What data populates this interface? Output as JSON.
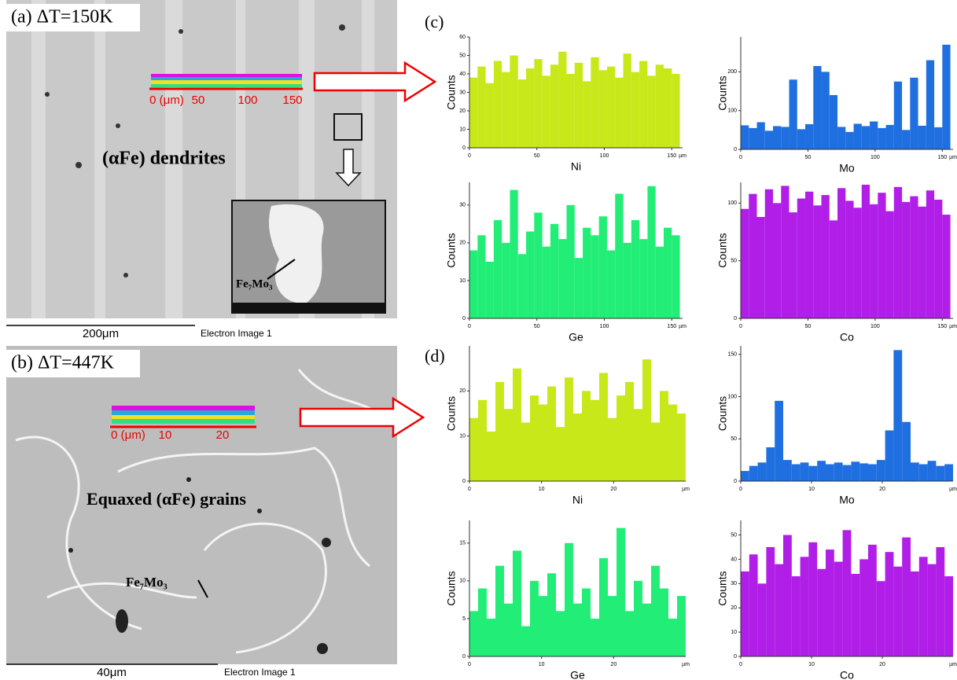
{
  "panels": {
    "a": {
      "label": "(a) ΔT=150K",
      "annotation": "(αFe) dendrites",
      "inset_label": "Fe₇Mo₃",
      "scale_bar": "200μm",
      "image_caption": "Electron Image 1",
      "line_scan_ticks": [
        "0 (μm)",
        "50",
        "100",
        "150"
      ]
    },
    "b": {
      "label": "(b) ΔT=447K",
      "annotation": "Equaxed (αFe) grains",
      "phase_label": "Fe₇Mo₃",
      "scale_bar": "40μm",
      "image_caption": "Electron Image 1",
      "line_scan_ticks": [
        "0 (μm)",
        "10",
        "20"
      ]
    },
    "c": {
      "label": "(c)"
    },
    "d": {
      "label": "(d)"
    }
  },
  "chart_data": [
    {
      "type": "bar",
      "y_label": "Counts",
      "x_label": "Ni",
      "x_unit": "µm",
      "color": "#c8e81a",
      "x": [
        0,
        6,
        12,
        18,
        24,
        30,
        36,
        42,
        48,
        54,
        60,
        66,
        72,
        78,
        84,
        90,
        96,
        102,
        108,
        114,
        120,
        126,
        132,
        138,
        144,
        150
      ],
      "values": [
        38,
        44,
        35,
        47,
        41,
        50,
        37,
        43,
        48,
        39,
        45,
        52,
        40,
        46,
        36,
        49,
        42,
        44,
        38,
        51,
        41,
        47,
        39,
        45,
        43,
        40
      ],
      "xlim": [
        0,
        158
      ],
      "ylim": [
        0,
        60
      ],
      "xticks": [
        0,
        50,
        100,
        150
      ],
      "yticks": [
        0,
        10,
        20,
        30,
        40,
        50,
        60
      ]
    },
    {
      "type": "bar",
      "y_label": "Counts",
      "x_label": "Mo",
      "x_unit": "µm",
      "color": "#1f6fe0",
      "x": [
        0,
        6,
        12,
        18,
        24,
        30,
        36,
        42,
        48,
        54,
        60,
        66,
        72,
        78,
        84,
        90,
        96,
        102,
        108,
        114,
        120,
        126,
        132,
        138,
        144,
        150
      ],
      "values": [
        62,
        55,
        70,
        48,
        60,
        58,
        180,
        52,
        65,
        215,
        200,
        140,
        58,
        45,
        66,
        60,
        72,
        55,
        63,
        175,
        50,
        185,
        61,
        230,
        57,
        270
      ],
      "xlim": [
        0,
        158
      ],
      "ylim": [
        0,
        290
      ],
      "xticks": [
        0,
        50,
        100,
        150
      ],
      "yticks": [
        0,
        100,
        200
      ]
    },
    {
      "type": "bar",
      "y_label": "Counts",
      "x_label": "Ge",
      "x_unit": "µm",
      "color": "#22ee77",
      "x": [
        0,
        6,
        12,
        18,
        24,
        30,
        36,
        42,
        48,
        54,
        60,
        66,
        72,
        78,
        84,
        90,
        96,
        102,
        108,
        114,
        120,
        126,
        132,
        138,
        144,
        150
      ],
      "values": [
        18,
        22,
        15,
        26,
        20,
        34,
        17,
        23,
        28,
        19,
        25,
        21,
        30,
        16,
        24,
        22,
        27,
        18,
        33,
        20,
        26,
        21,
        35,
        19,
        24,
        22
      ],
      "xlim": [
        0,
        158
      ],
      "ylim": [
        0,
        36
      ],
      "xticks": [
        0,
        50,
        100,
        150
      ],
      "yticks": [
        0,
        10,
        20,
        30
      ]
    },
    {
      "type": "bar",
      "y_label": "Counts",
      "x_label": "Co",
      "x_unit": "µm",
      "color": "#b01ee8",
      "x": [
        0,
        6,
        12,
        18,
        24,
        30,
        36,
        42,
        48,
        54,
        60,
        66,
        72,
        78,
        84,
        90,
        96,
        102,
        108,
        114,
        120,
        126,
        132,
        138,
        144,
        150
      ],
      "values": [
        95,
        108,
        88,
        112,
        100,
        115,
        92,
        104,
        110,
        98,
        107,
        85,
        113,
        102,
        96,
        116,
        99,
        109,
        93,
        114,
        101,
        106,
        97,
        111,
        103,
        90
      ],
      "xlim": [
        0,
        158
      ],
      "ylim": [
        0,
        118
      ],
      "xticks": [
        0,
        50,
        100,
        150
      ],
      "yticks": [
        0,
        50,
        100
      ]
    },
    {
      "type": "bar",
      "y_label": "Counts",
      "x_label": "Ni",
      "x_unit": "µm",
      "color": "#c8e81a",
      "x": [
        0,
        1.2,
        2.4,
        3.6,
        4.8,
        6,
        7.2,
        8.4,
        9.6,
        10.8,
        12,
        13.2,
        14.4,
        15.6,
        16.8,
        18,
        19.2,
        20.4,
        21.6,
        22.8,
        24,
        25.2,
        26.4,
        27.6,
        28.8
      ],
      "values": [
        14,
        18,
        11,
        22,
        16,
        25,
        13,
        19,
        17,
        21,
        12,
        23,
        15,
        20,
        18,
        24,
        14,
        19,
        22,
        16,
        27,
        13,
        20,
        17,
        15
      ],
      "xlim": [
        0,
        30
      ],
      "ylim": [
        0,
        30
      ],
      "xticks": [
        0,
        10,
        20
      ],
      "yticks": [
        0,
        10,
        20
      ]
    },
    {
      "type": "bar",
      "y_label": "Counts",
      "x_label": "Mo",
      "x_unit": "µm",
      "color": "#1f6fe0",
      "x": [
        0,
        1.2,
        2.4,
        3.6,
        4.8,
        6,
        7.2,
        8.4,
        9.6,
        10.8,
        12,
        13.2,
        14.4,
        15.6,
        16.8,
        18,
        19.2,
        20.4,
        21.6,
        22.8,
        24,
        25.2,
        26.4,
        27.6,
        28.8
      ],
      "values": [
        12,
        18,
        22,
        40,
        95,
        25,
        20,
        22,
        18,
        24,
        20,
        22,
        19,
        23,
        21,
        20,
        25,
        60,
        155,
        70,
        22,
        20,
        24,
        18,
        20
      ],
      "xlim": [
        0,
        30
      ],
      "ylim": [
        0,
        160
      ],
      "xticks": [
        0,
        10,
        20
      ],
      "yticks": [
        0,
        50,
        100,
        150
      ]
    },
    {
      "type": "bar",
      "y_label": "Counts",
      "x_label": "Ge",
      "x_unit": "µm",
      "color": "#22ee77",
      "x": [
        0,
        1.2,
        2.4,
        3.6,
        4.8,
        6,
        7.2,
        8.4,
        9.6,
        10.8,
        12,
        13.2,
        14.4,
        15.6,
        16.8,
        18,
        19.2,
        20.4,
        21.6,
        22.8,
        24,
        25.2,
        26.4,
        27.6,
        28.8
      ],
      "values": [
        6,
        9,
        5,
        12,
        7,
        14,
        4,
        10,
        8,
        11,
        6,
        15,
        7,
        9,
        5,
        13,
        8,
        17,
        6,
        10,
        7,
        12,
        9,
        5,
        8
      ],
      "xlim": [
        0,
        30
      ],
      "ylim": [
        0,
        18
      ],
      "xticks": [
        0,
        10,
        20
      ],
      "yticks": [
        0,
        5,
        10,
        15
      ]
    },
    {
      "type": "bar",
      "y_label": "Counts",
      "x_label": "Co",
      "x_unit": "µm",
      "color": "#b01ee8",
      "x": [
        0,
        1.2,
        2.4,
        3.6,
        4.8,
        6,
        7.2,
        8.4,
        9.6,
        10.8,
        12,
        13.2,
        14.4,
        15.6,
        16.8,
        18,
        19.2,
        20.4,
        21.6,
        22.8,
        24,
        25.2,
        26.4,
        27.6,
        28.8
      ],
      "values": [
        35,
        42,
        30,
        45,
        38,
        50,
        33,
        41,
        47,
        36,
        44,
        39,
        52,
        34,
        40,
        46,
        31,
        43,
        37,
        49,
        35,
        41,
        38,
        45,
        33
      ],
      "xlim": [
        0,
        30
      ],
      "ylim": [
        0,
        56
      ],
      "xticks": [
        0,
        10,
        20
      ],
      "yticks": [
        0,
        10,
        20,
        30,
        40,
        50
      ]
    }
  ]
}
